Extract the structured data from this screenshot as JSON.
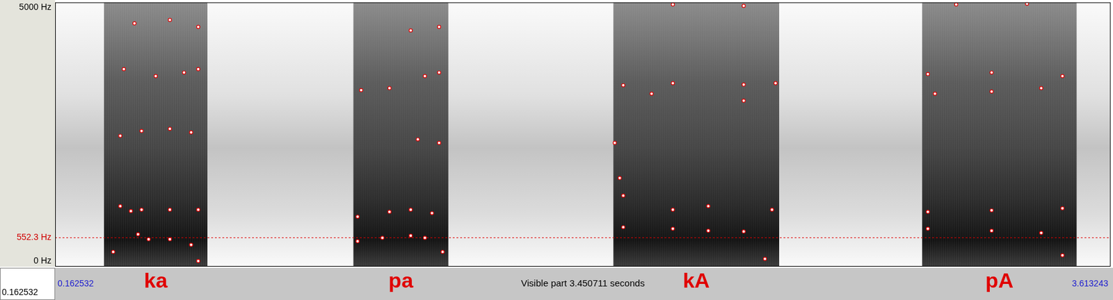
{
  "chart_data": {
    "type": "scatter",
    "xlim": [
      0.162532,
      3.613243
    ],
    "xticks": [
      0.162532,
      3.613243
    ],
    "x_label": "Visible part 3.450711 seconds",
    "ylim": [
      0,
      5000
    ],
    "yticks": [
      {
        "value": 0,
        "label": "0 Hz"
      },
      {
        "value": 5000,
        "label": "5000 Hz"
      }
    ],
    "cursor": {
      "value": 552.3,
      "label": "552.3 Hz"
    },
    "cursor_time": 0.162532,
    "grid": false,
    "segments": [
      {
        "label": "ka",
        "start": 0.3223,
        "end": 0.6604
      },
      {
        "label": "pa",
        "start": 1.1376,
        "end": 1.448
      },
      {
        "label": "kA",
        "start": 1.9876,
        "end": 2.5295
      },
      {
        "label": "pA",
        "start": 2.997,
        "end": 3.502
      }
    ],
    "series": [
      {
        "color": "#e00000",
        "marker": "circle",
        "x": [
          0.3524,
          0.4335,
          0.4682,
          0.5377,
          0.6072,
          0.6304,
          1.1514,
          1.2325,
          1.3251,
          1.3714,
          1.4293,
          2.0199,
          2.182,
          2.2978,
          2.4136,
          2.4831,
          3.0157,
          3.2241,
          3.3863,
          3.4557
        ],
        "values": [
          279,
          612,
          519,
          519,
          412,
          106,
          479,
          545,
          585,
          545,
          279,
          745,
          718,
          678,
          665,
          146,
          718,
          678,
          638,
          213
        ]
      },
      {
        "color": "#e00000",
        "marker": "circle",
        "x": [
          0.3756,
          0.4103,
          0.4451,
          0.5377,
          0.6304,
          1.1514,
          1.2556,
          1.3251,
          1.3946,
          1.9921,
          2.0083,
          2.0199,
          2.182,
          2.2978,
          2.5062,
          3.0157,
          3.2241,
          3.4557
        ],
        "values": [
          1144,
          1051,
          1077,
          1077,
          1077,
          944,
          1037,
          1077,
          1011,
          2341,
          1676,
          1343,
          1077,
          1144,
          1077,
          1037,
          1064,
          1104
        ]
      },
      {
        "color": "#e00000",
        "marker": "circle",
        "x": [
          0.3756,
          0.4451,
          0.5377,
          0.6072,
          1.3483,
          1.4178,
          2.0199,
          2.182,
          2.4136,
          2.5178,
          3.0389,
          3.2241,
          3.3863
        ],
        "values": [
          2474,
          2567,
          2607,
          2540,
          2407,
          2341,
          3431,
          3471,
          3445,
          3471,
          3272,
          3312,
          3378
        ]
      },
      {
        "color": "#e00000",
        "marker": "circle",
        "x": [
          0.3872,
          0.4914,
          0.584,
          0.6304,
          1.163,
          1.2556,
          1.3714,
          1.4178,
          2.1125,
          2.4136,
          3.0157,
          3.2241,
          3.4557
        ],
        "values": [
          3737,
          3604,
          3671,
          3737,
          3338,
          3378,
          3604,
          3671,
          3272,
          3139,
          3644,
          3671,
          3604
        ]
      },
      {
        "color": "#e00000",
        "marker": "circle",
        "x": [
          0.4219,
          0.5377,
          0.6304,
          1.3251,
          1.4178,
          2.182,
          2.4136,
          3.1083,
          3.3399
        ],
        "values": [
          4602,
          4668,
          4535,
          4469,
          4535,
          4961,
          4934,
          4961,
          4974
        ]
      }
    ]
  }
}
